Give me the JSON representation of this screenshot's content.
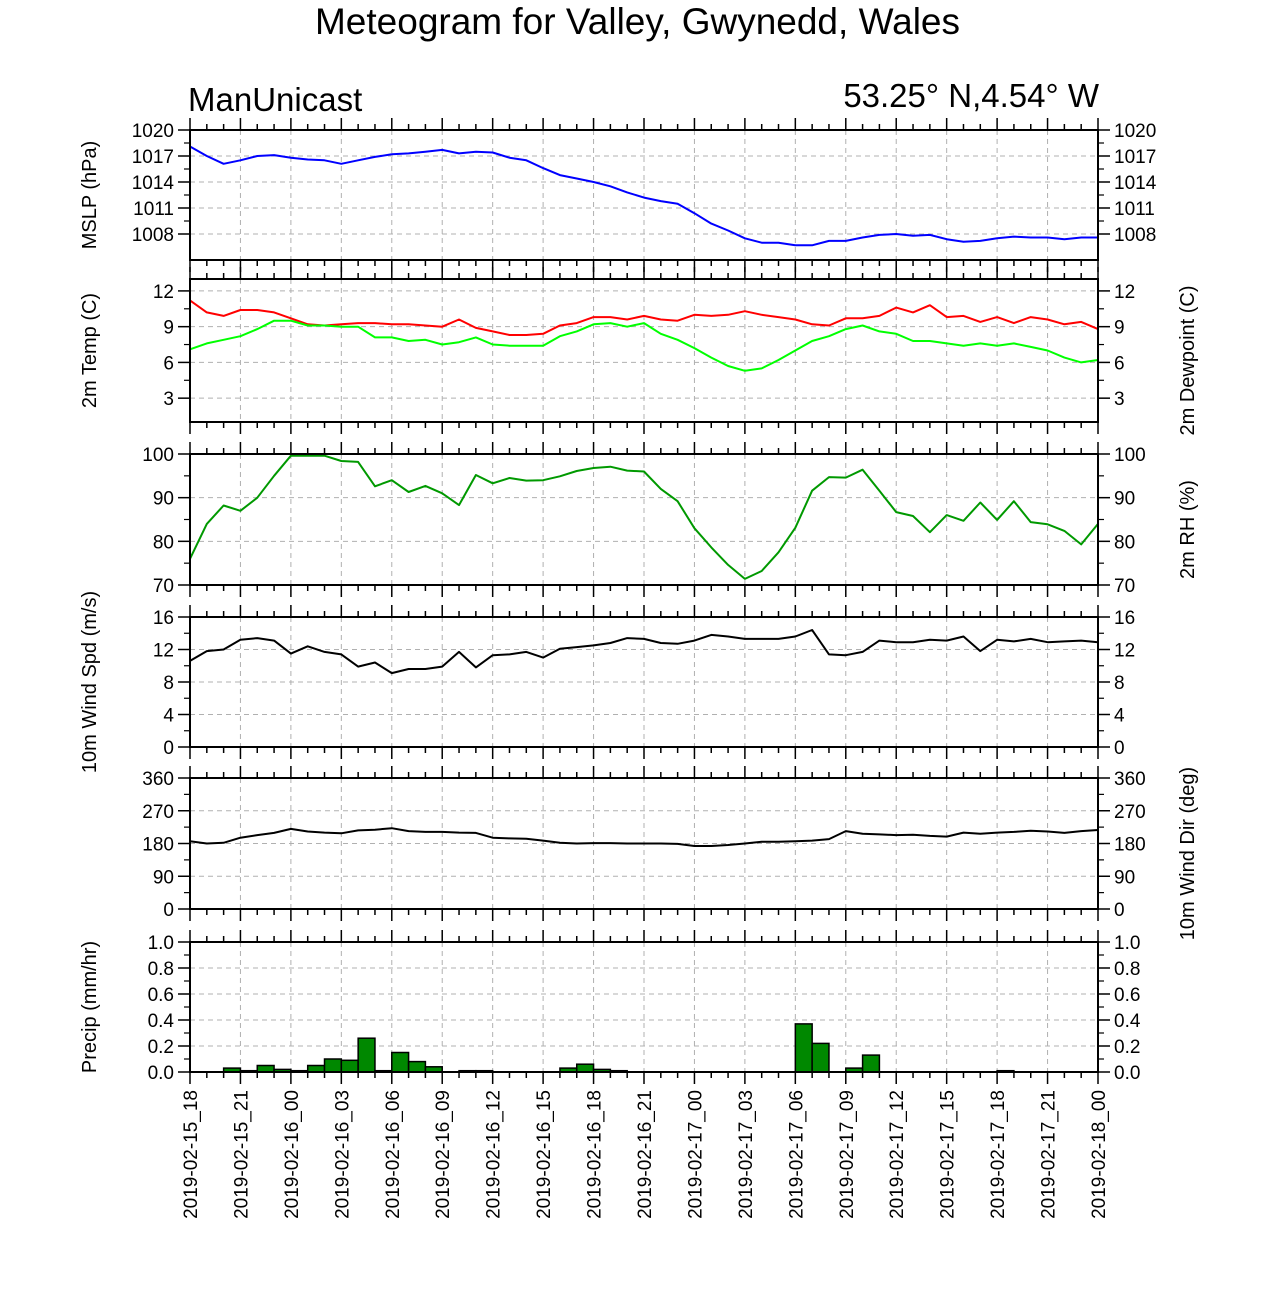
{
  "title": "Meteogram for Valley, Gwynedd, Wales",
  "model": "ManUnicast",
  "location": "53.25° N,4.54° W",
  "colors": {
    "mslp": "#0000ff",
    "temp": "#ff0000",
    "dewpoint": "#00ff00",
    "rh": "#009900",
    "wind": "#000000",
    "precip": "#008800",
    "grid": "#b0b0b0"
  },
  "chart_data": {
    "type": "line",
    "x_ticks": [
      "2019-02-15_18",
      "2019-02-15_21",
      "2019-02-16_00",
      "2019-02-16_03",
      "2019-02-16_06",
      "2019-02-16_09",
      "2019-02-16_12",
      "2019-02-16_15",
      "2019-02-16_18",
      "2019-02-16_21",
      "2019-02-17_00",
      "2019-02-17_03",
      "2019-02-17_06",
      "2019-02-17_09",
      "2019-02-17_12",
      "2019-02-17_15",
      "2019-02-17_18",
      "2019-02-17_21",
      "2019-02-18_00"
    ],
    "x_hours_per_step": 1,
    "grid": true,
    "panels": [
      {
        "key": "mslp",
        "ylabel": "MSLP (hPa)",
        "ylabel_right": "",
        "ylim": [
          1005,
          1020
        ],
        "yticks": [
          "1020",
          "1017",
          "1014",
          "1011",
          "1008"
        ],
        "ytick_values": [
          1020,
          1017,
          1014,
          1011,
          1008
        ],
        "right_ticks": true,
        "series": [
          {
            "color": "#0000ff",
            "values": [
              1018.1,
              1017.0,
              1016.1,
              1016.5,
              1017.0,
              1017.1,
              1016.8,
              1016.6,
              1016.5,
              1016.1,
              1016.5,
              1016.9,
              1017.2,
              1017.3,
              1017.5,
              1017.7,
              1017.3,
              1017.5,
              1017.4,
              1016.8,
              1016.5,
              1015.6,
              1014.8,
              1014.4,
              1014.0,
              1013.5,
              1012.8,
              1012.2,
              1011.8,
              1011.5,
              1010.4,
              1009.2,
              1008.4,
              1007.5,
              1007.0,
              1007.0,
              1006.7,
              1006.7,
              1007.2,
              1007.2,
              1007.6,
              1007.9,
              1008.0,
              1007.8,
              1007.9,
              1007.4,
              1007.1,
              1007.2,
              1007.5,
              1007.7,
              1007.6,
              1007.6,
              1007.4,
              1007.6,
              1007.6
            ]
          }
        ]
      },
      {
        "key": "temp",
        "ylabel": "2m Temp (C)",
        "ylabel_right": "2m Dewpoint (C)",
        "ylim": [
          1,
          13
        ],
        "yticks": [
          "12",
          "9",
          "6",
          "3"
        ],
        "ytick_values": [
          12,
          9,
          6,
          3
        ],
        "right_ticks": true,
        "series": [
          {
            "color": "#ff0000",
            "values": [
              11.2,
              10.2,
              9.9,
              10.4,
              10.4,
              10.2,
              9.7,
              9.2,
              9.1,
              9.2,
              9.3,
              9.3,
              9.2,
              9.2,
              9.1,
              9.0,
              9.6,
              8.9,
              8.6,
              8.3,
              8.3,
              8.4,
              9.1,
              9.3,
              9.8,
              9.8,
              9.6,
              9.9,
              9.6,
              9.5,
              10.0,
              9.9,
              10.0,
              10.3,
              10.0,
              9.8,
              9.6,
              9.2,
              9.1,
              9.7,
              9.7,
              9.9,
              10.6,
              10.2,
              10.8,
              9.8,
              9.9,
              9.4,
              9.8,
              9.3,
              9.8,
              9.6,
              9.2,
              9.4,
              8.8
            ]
          },
          {
            "color": "#00ff00",
            "values": [
              7.1,
              7.6,
              7.9,
              8.2,
              8.8,
              9.5,
              9.5,
              9.1,
              9.1,
              9.0,
              9.0,
              8.1,
              8.1,
              7.8,
              7.9,
              7.5,
              7.7,
              8.1,
              7.5,
              7.4,
              7.4,
              7.4,
              8.2,
              8.6,
              9.2,
              9.3,
              9.0,
              9.3,
              8.4,
              7.9,
              7.2,
              6.4,
              5.7,
              5.3,
              5.5,
              6.2,
              7.0,
              7.8,
              8.2,
              8.8,
              9.1,
              8.6,
              8.4,
              7.8,
              7.8,
              7.6,
              7.4,
              7.6,
              7.4,
              7.6,
              7.3,
              7.0,
              6.4,
              6.0,
              6.2
            ]
          }
        ]
      },
      {
        "key": "rh",
        "ylabel": "",
        "ylabel_right": "2m RH (%)",
        "ylim": [
          70,
          100
        ],
        "yticks": [
          "100",
          "90",
          "80",
          "70"
        ],
        "ytick_values": [
          100,
          90,
          80,
          70
        ],
        "right_ticks": true,
        "series": [
          {
            "color": "#009900",
            "values": [
              76.0,
              84.0,
              88.2,
              87.0,
              90.0,
              95.0,
              99.6,
              99.6,
              99.6,
              98.4,
              98.2,
              92.6,
              94.0,
              91.3,
              92.7,
              91.0,
              88.3,
              95.2,
              93.3,
              94.5,
              93.9,
              94.0,
              94.9,
              96.1,
              96.8,
              97.1,
              96.2,
              96.0,
              92.0,
              89.2,
              83.0,
              78.6,
              74.6,
              71.4,
              73.2,
              77.5,
              83.1,
              91.6,
              94.7,
              94.6,
              96.4,
              91.6,
              86.7,
              85.8,
              82.1,
              86.0,
              84.7,
              88.9,
              84.9,
              89.2,
              84.4,
              83.9,
              82.4,
              79.3,
              84.0
            ]
          }
        ]
      },
      {
        "key": "wind",
        "ylabel": "10m Wind Spd (m/s)",
        "ylabel_right": "",
        "ylim": [
          0,
          16
        ],
        "yticks": [
          "16",
          "12",
          "8",
          "4",
          "0"
        ],
        "ytick_values": [
          16,
          12,
          8,
          4,
          0
        ],
        "right_ticks": true,
        "series": [
          {
            "color": "#000000",
            "values": [
              10.6,
              11.8,
              12.0,
              13.2,
              13.4,
              13.1,
              11.5,
              12.4,
              11.7,
              11.4,
              9.9,
              10.4,
              9.1,
              9.6,
              9.6,
              9.9,
              11.7,
              9.8,
              11.3,
              11.4,
              11.7,
              11.0,
              12.1,
              12.3,
              12.5,
              12.8,
              13.4,
              13.3,
              12.8,
              12.7,
              13.1,
              13.8,
              13.6,
              13.3,
              13.3,
              13.3,
              13.6,
              14.4,
              11.4,
              11.3,
              11.7,
              13.1,
              12.9,
              12.9,
              13.2,
              13.1,
              13.6,
              11.8,
              13.2,
              13.0,
              13.3,
              12.9,
              13.0,
              13.1,
              12.9
            ]
          }
        ]
      },
      {
        "key": "wdir",
        "ylabel": "",
        "ylabel_right": "10m Wind Dir (deg)",
        "ylim": [
          0,
          360
        ],
        "yticks": [
          "360",
          "270",
          "180",
          "90",
          "0"
        ],
        "ytick_values": [
          360,
          270,
          180,
          90,
          0
        ],
        "right_ticks": true,
        "series": [
          {
            "color": "#000000",
            "values": [
              186,
              180,
              182,
              196,
              203,
              209,
              220,
              213,
              210,
              208,
              216,
              218,
              222,
              214,
              212,
              212,
              210,
              209,
              196,
              194,
              193,
              188,
              182,
              180,
              181,
              181,
              180,
              180,
              180,
              179,
              173,
              173,
              176,
              180,
              185,
              185,
              186,
              188,
              192,
              214,
              207,
              205,
              203,
              204,
              201,
              199,
              210,
              207,
              210,
              212,
              215,
              213,
              209,
              214,
              217
            ]
          }
        ]
      },
      {
        "key": "precip",
        "ylabel": "Precip (mm/hr)",
        "ylabel_right": "",
        "ylim": [
          0,
          1
        ],
        "yticks": [
          "1.0",
          "0.8",
          "0.6",
          "0.4",
          "0.2",
          "0.0"
        ],
        "ytick_values": [
          1.0,
          0.8,
          0.6,
          0.4,
          0.2,
          0.0
        ],
        "right_ticks": true,
        "bars": [
          0,
          0,
          0.03,
          0.01,
          0.05,
          0.02,
          0.01,
          0.05,
          0.1,
          0.09,
          0.26,
          0.01,
          0.15,
          0.08,
          0.04,
          0,
          0.01,
          0.01,
          0,
          0,
          0,
          0,
          0.03,
          0.06,
          0.02,
          0.01,
          0,
          0,
          0,
          0,
          0,
          0,
          0,
          0,
          0,
          0,
          0.37,
          0.22,
          0,
          0.03,
          0.13,
          0,
          0,
          0,
          0,
          0,
          0,
          0,
          0.01,
          0,
          0,
          0,
          0,
          0,
          0
        ]
      }
    ]
  }
}
